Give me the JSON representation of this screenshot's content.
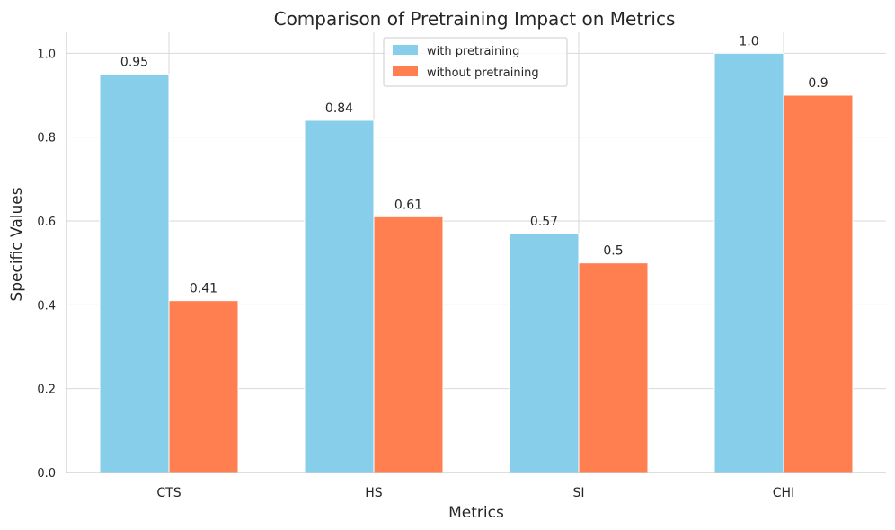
{
  "chart_data": {
    "type": "bar",
    "title": "Comparison of Pretraining Impact on Metrics",
    "xlabel": "Metrics",
    "ylabel": "Specific Values",
    "categories": [
      "CTS",
      "HS",
      "SI",
      "CHI"
    ],
    "series": [
      {
        "name": "with pretraining",
        "values": [
          0.95,
          0.84,
          0.57,
          1.0
        ],
        "labels": [
          "0.95",
          "0.84",
          "0.57",
          "1.0"
        ],
        "color": "#87CEEB"
      },
      {
        "name": "without pretraining",
        "values": [
          0.41,
          0.61,
          0.5,
          0.9
        ],
        "labels": [
          "0.41",
          "0.61",
          "0.5",
          "0.9"
        ],
        "color": "#FF7F50"
      }
    ],
    "ylim": [
      0,
      1.05
    ],
    "yticks": [
      0.0,
      0.2,
      0.4,
      0.6,
      0.8,
      1.0
    ],
    "ytick_labels": [
      "0.0",
      "0.2",
      "0.4",
      "0.6",
      "0.8",
      "1.0"
    ],
    "grid": true,
    "legend_position": "top-center"
  }
}
